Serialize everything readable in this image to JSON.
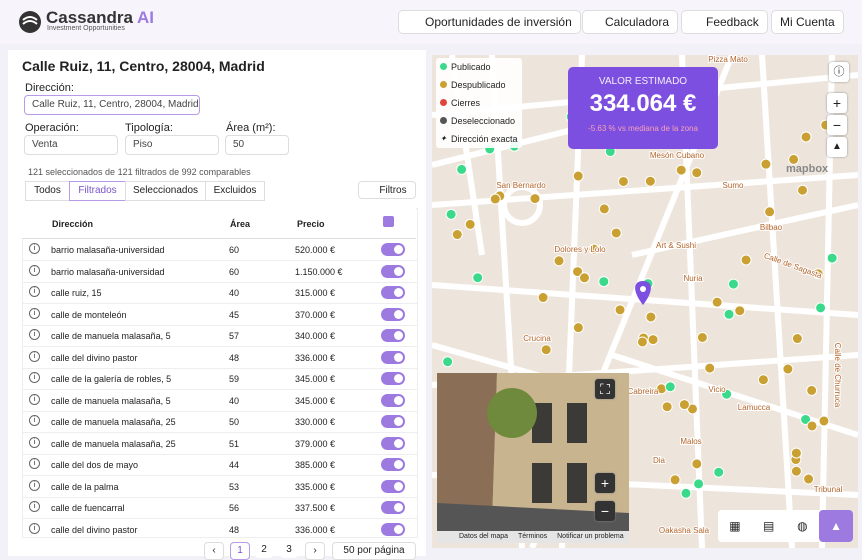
{
  "header": {
    "brand": "Cassandra",
    "brand_suffix": "AI",
    "tagline": "Investment Opportunities",
    "nav": [
      "Oportunidades de inversión",
      "Calculadora",
      "Feedback",
      "Mi Cuenta"
    ]
  },
  "panel": {
    "title": "Calle Ruiz, 11, Centro, 28004, Madrid",
    "address_label": "Dirección:",
    "address_value": "Calle Ruiz, 11, Centro, 28004, Madrid",
    "fields": [
      {
        "label": "Operación:",
        "value": "Venta"
      },
      {
        "label": "Tipología:",
        "value": "Piso"
      },
      {
        "label": "Área (m²):",
        "value": "50"
      }
    ],
    "summary": "121 seleccionados de 121 filtrados de 992 comparables",
    "tabs": [
      "Todos",
      "Filtrados",
      "Seleccionados",
      "Excluidos"
    ],
    "filter_button": "Filtros"
  },
  "table": {
    "columns": [
      "Dirección",
      "Área",
      "Precio"
    ],
    "rows": [
      [
        "barrio malasaña-universidad",
        "60",
        "520.000 €"
      ],
      [
        "barrio malasaña-universidad",
        "60",
        "1.150.000 €"
      ],
      [
        "calle ruiz, 15",
        "40",
        "315.000 €"
      ],
      [
        "calle de monteleón",
        "45",
        "370.000 €"
      ],
      [
        "calle de manuela malasaña, 5",
        "57",
        "340.000 €"
      ],
      [
        "calle del divino pastor",
        "48",
        "336.000 €"
      ],
      [
        "calle de la galería de robles, 5",
        "59",
        "345.000 €"
      ],
      [
        "calle de manuela malasaña, 5",
        "40",
        "345.000 €"
      ],
      [
        "calle de manuela malasaña, 25",
        "50",
        "330.000 €"
      ],
      [
        "calle de manuela malasaña, 25",
        "51",
        "379.000 €"
      ],
      [
        "calle del dos de mayo",
        "44",
        "385.000 €"
      ],
      [
        "calle de la palma",
        "53",
        "335.000 €"
      ],
      [
        "calle de fuencarral",
        "56",
        "337.500 €"
      ],
      [
        "calle del divino pastor",
        "48",
        "336.000 €"
      ]
    ]
  },
  "pagination": {
    "pages": [
      "1",
      "2",
      "3"
    ],
    "per_page": "50 por página"
  },
  "map": {
    "legend": [
      "Publicado",
      "Despublicado",
      "Cierres",
      "Deseleccionado",
      "Dirección exacta"
    ],
    "estimate": {
      "label": "VALOR ESTIMADO",
      "value": "334.064 €",
      "note": "-5.63 % vs mediana de la zona"
    },
    "places": [
      "San Bernardo",
      "Bilbao",
      "Tribunal",
      "Calle de Sagasta",
      "Pizza Mato",
      "Mesón Cubano",
      "Sumo",
      "Nuria",
      "Art & Sushi",
      "Dolores y Lolo",
      "Crucina",
      "Cabreira",
      "Vicio",
      "Lamucca",
      "Malos",
      "Dia",
      "Oakasha Sala",
      "Calle de Churruca"
    ],
    "brand": "mapbox",
    "attribution": [
      "Datos del mapa",
      "Términos",
      "Notificar un problema"
    ]
  }
}
